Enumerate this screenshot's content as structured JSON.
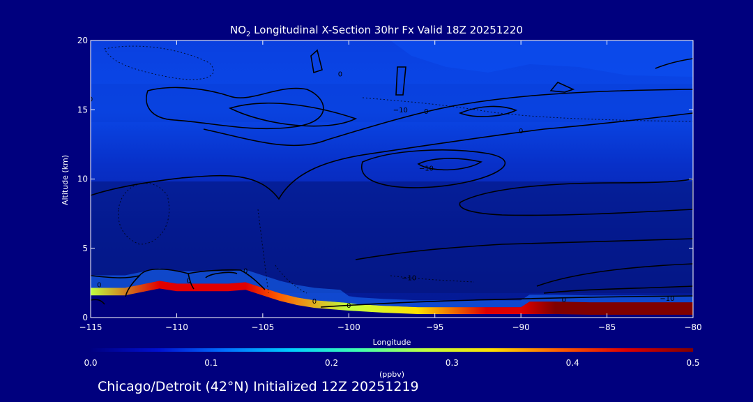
{
  "title": {
    "species": "NO",
    "subscript": "2",
    "rest": " Longitudinal X-Section 30hr  Fx Valid 18Z 20251220"
  },
  "footer": "Chicago/Detroit (42°N) Initialized 12Z 20251219",
  "colors": {
    "background": "#00007e",
    "terrain": "#00007e",
    "contour": "#000000",
    "text": "#ffffff"
  },
  "chart_data": {
    "type": "heatmap",
    "title": "NO2 Longitudinal X-Section 30hr  Fx Valid 18Z 20251220",
    "xlabel": "Longitude",
    "ylabel": "Altitude (km)",
    "xlim": [
      -115,
      -80
    ],
    "ylim": [
      0,
      20
    ],
    "xticks": [
      -115,
      -110,
      -105,
      -100,
      -95,
      -90,
      -85,
      -80
    ],
    "yticks": [
      0,
      5,
      10,
      15,
      20
    ],
    "colorbar": {
      "label": "(ppbv)",
      "min": 0.0,
      "max": 0.5,
      "ticks": [
        "0.0",
        "0.1",
        "0.2",
        "0.3",
        "0.4",
        "0.5"
      ],
      "colors": [
        "#000080",
        "#0010d0",
        "#0070ff",
        "#00d0ff",
        "#40ffb0",
        "#c0ff40",
        "#ffe000",
        "#ff6000",
        "#e00000",
        "#800000"
      ]
    },
    "terrain_km": {
      "lon": [
        -115,
        -113,
        -111,
        -110,
        -109.5,
        -107,
        -106,
        -105,
        -104,
        -103,
        -102,
        -100,
        -98,
        -96,
        -94,
        -92,
        -90,
        -88,
        -86,
        -84,
        -82,
        -80
      ],
      "alt": [
        1.6,
        1.6,
        2.1,
        1.9,
        1.9,
        1.9,
        2.0,
        1.6,
        1.2,
        0.9,
        0.7,
        0.5,
        0.35,
        0.25,
        0.25,
        0.25,
        0.25,
        0.25,
        0.2,
        0.2,
        0.2,
        0.2
      ]
    },
    "surface_no2_ppbv": {
      "lon": [
        -115,
        -111,
        -106,
        -104,
        -100,
        -96,
        -92,
        -90,
        -88,
        -86,
        -84,
        -82,
        -80
      ],
      "value": [
        0.3,
        0.42,
        0.42,
        0.38,
        0.3,
        0.35,
        0.42,
        0.45,
        0.5,
        0.5,
        0.5,
        0.5,
        0.48
      ]
    },
    "contour_labels": [
      {
        "text": "0",
        "lon": -114.5,
        "alt": 2.2
      },
      {
        "text": "0",
        "lon": -109.3,
        "alt": 2.5
      },
      {
        "text": "0",
        "lon": -106,
        "alt": 3.2
      },
      {
        "text": "0",
        "lon": -115,
        "alt": 15.6
      },
      {
        "text": "-10",
        "lon": -97,
        "alt": 14.8
      },
      {
        "text": "0",
        "lon": -95.5,
        "alt": 14.7
      },
      {
        "text": "0",
        "lon": -90,
        "alt": 13.3
      },
      {
        "text": "-10",
        "lon": -95.5,
        "alt": 10.6
      },
      {
        "text": "-10",
        "lon": -96.5,
        "alt": 2.7
      },
      {
        "text": "-10",
        "lon": -81.5,
        "alt": 1.2
      },
      {
        "text": "0",
        "lon": -102,
        "alt": 1.0
      },
      {
        "text": "0",
        "lon": -100,
        "alt": 0.7
      },
      {
        "text": "0",
        "lon": -87.5,
        "alt": 1.1
      },
      {
        "text": "0",
        "lon": -100.5,
        "alt": 17.4
      }
    ]
  }
}
